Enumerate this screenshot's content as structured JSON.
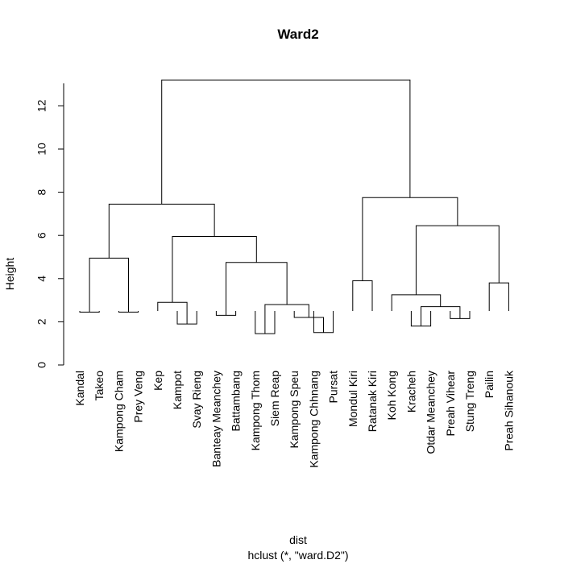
{
  "chart_data": {
    "type": "dendrogram",
    "title": "Ward2",
    "xlabel": "dist",
    "sublabel": "hclust (*, \"ward.D2\")",
    "ylabel": "Height",
    "ylim": [
      0,
      13.5
    ],
    "y_ticks": [
      0,
      2,
      4,
      6,
      8,
      10,
      12
    ],
    "grid": false,
    "leaves": [
      "Kandal",
      "Takeo",
      "Kampong Cham",
      "Prey Veng",
      "Kep",
      "Kampot",
      "Svay Rieng",
      "Banteay Meanchey",
      "Battambang",
      "Kampong Thom",
      "Siem Reap",
      "Kampong Speu",
      "Kampong Chhnang",
      "Pursat",
      "Mondul Kiri",
      "Ratanak Kiri",
      "Koh Kong",
      "Kracheh",
      "Otdar Meanchey",
      "Preah Vihear",
      "Stung Treng",
      "Pailin",
      "Preah Sihanouk"
    ],
    "merges": [
      {
        "left": "L0",
        "right": "L1",
        "height": 2.45
      },
      {
        "left": "L2",
        "right": "L3",
        "height": 2.45
      },
      {
        "left": "N0",
        "right": "N1",
        "height": 4.95
      },
      {
        "left": "L5",
        "right": "L6",
        "height": 1.9
      },
      {
        "left": "L4",
        "right": "N3",
        "height": 2.9
      },
      {
        "left": "L7",
        "right": "L8",
        "height": 2.3
      },
      {
        "left": "L9",
        "right": "L10",
        "height": 1.45
      },
      {
        "left": "L12",
        "right": "L13",
        "height": 1.5
      },
      {
        "left": "L11",
        "right": "N7",
        "height": 2.2
      },
      {
        "left": "N6",
        "right": "N8",
        "height": 2.8
      },
      {
        "left": "N5",
        "right": "N9",
        "height": 4.75
      },
      {
        "left": "N4",
        "right": "N10",
        "height": 5.95
      },
      {
        "left": "N2",
        "right": "N11",
        "height": 7.45
      },
      {
        "left": "L14",
        "right": "L15",
        "height": 3.9
      },
      {
        "left": "L17",
        "right": "L18",
        "height": 1.8
      },
      {
        "left": "L19",
        "right": "L20",
        "height": 2.15
      },
      {
        "left": "N14",
        "right": "N15",
        "height": 2.7
      },
      {
        "left": "L16",
        "right": "N16",
        "height": 3.25
      },
      {
        "left": "L21",
        "right": "L22",
        "height": 3.8
      },
      {
        "left": "N17",
        "right": "N18",
        "height": 6.45
      },
      {
        "left": "N13",
        "right": "N19",
        "height": 7.75
      },
      {
        "left": "N12",
        "right": "N20",
        "height": 13.2
      }
    ]
  }
}
